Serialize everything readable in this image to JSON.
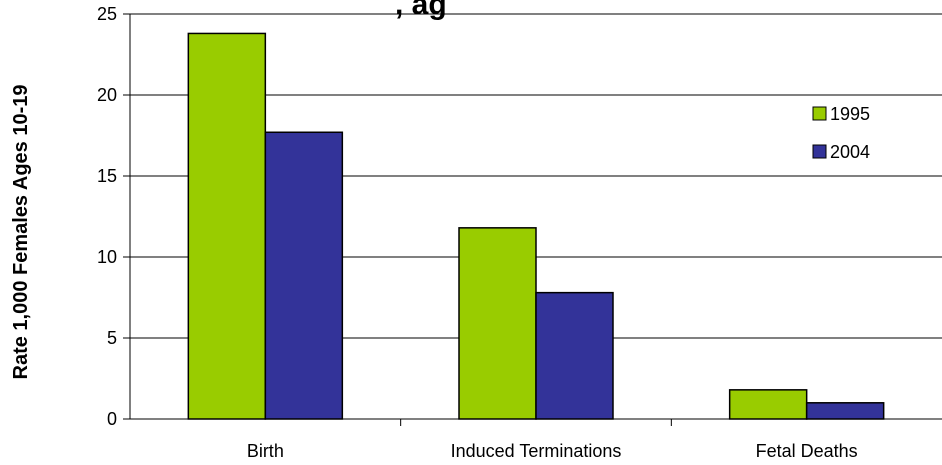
{
  "chart_data": {
    "type": "bar",
    "title_fragment": ", ag",
    "xlabel": "",
    "ylabel": "Rate 1,000 Females Ages 10-19",
    "categories": [
      "Birth",
      "Induced Terminations",
      "Fetal Deaths"
    ],
    "series": [
      {
        "name": "1995",
        "color": "#99CC00",
        "values": [
          23.8,
          11.8,
          1.8
        ]
      },
      {
        "name": "2004",
        "color": "#333399",
        "values": [
          17.7,
          7.8,
          1.0
        ]
      }
    ],
    "ylim": [
      0,
      25
    ],
    "yticks": [
      0,
      5,
      10,
      15,
      20,
      25
    ],
    "grid": true,
    "legend_position": "right"
  }
}
